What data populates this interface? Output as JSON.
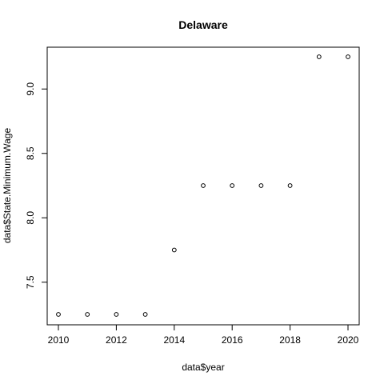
{
  "chart_data": {
    "type": "scatter",
    "title": "Delaware",
    "xlabel": "data$year",
    "ylabel": "data$State.Minimum.Wage",
    "x": [
      2010,
      2011,
      2012,
      2013,
      2014,
      2015,
      2016,
      2017,
      2018,
      2019,
      2020
    ],
    "y": [
      7.25,
      7.25,
      7.25,
      7.25,
      7.75,
      8.25,
      8.25,
      8.25,
      8.25,
      9.25,
      9.25
    ],
    "xlim": [
      2010,
      2020
    ],
    "ylim": [
      7.25,
      9.25
    ],
    "xticks": [
      2010,
      2012,
      2014,
      2016,
      2018,
      2020
    ],
    "yticks": [
      7.5,
      8.0,
      8.5,
      9.0
    ],
    "ytick_labels": [
      "7.5",
      "8.0",
      "8.5",
      "9.0"
    ],
    "grid": false,
    "marker": "open-circle"
  }
}
